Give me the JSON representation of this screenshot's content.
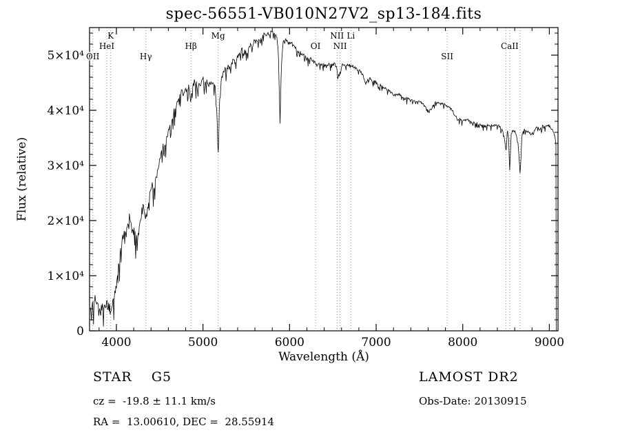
{
  "title": "spec-56551-VB010N27V2_sp13-184.fits",
  "footer": {
    "class_label": "STAR    G5",
    "survey": "LAMOST DR2",
    "cz": "cz =  -19.8 ± 11.1 km/s",
    "obs_date": "Obs-Date: 20130915",
    "coords": "RA =  13.00610, DEC =  28.55914"
  },
  "chart_data": {
    "type": "line",
    "title": "spec-56551-VB010N27V2_sp13-184.fits",
    "xlabel": "Wavelength (Å)",
    "ylabel": "Flux (relative)",
    "xlim": [
      3690,
      9100
    ],
    "ylim": [
      0,
      55000
    ],
    "grid": false,
    "legend": "none",
    "line_color": "#000000",
    "marker_line_color": "#8a8a8a",
    "x_ticks": [
      {
        "v": 4000,
        "label": "4000"
      },
      {
        "v": 5000,
        "label": "5000"
      },
      {
        "v": 6000,
        "label": "6000"
      },
      {
        "v": 7000,
        "label": "7000"
      },
      {
        "v": 8000,
        "label": "8000"
      },
      {
        "v": 9000,
        "label": "9000"
      }
    ],
    "y_ticks": [
      {
        "v": 0,
        "label": "0"
      },
      {
        "v": 10000,
        "label": "1×10⁴"
      },
      {
        "v": 20000,
        "label": "2×10⁴"
      },
      {
        "v": 30000,
        "label": "3×10⁴"
      },
      {
        "v": 40000,
        "label": "4×10⁴"
      },
      {
        "v": 50000,
        "label": "5×10⁴"
      }
    ],
    "x_minor_step": 200,
    "y_minor_step": 2000,
    "spectral_lines": [
      {
        "name": "OII",
        "wavelength": 3727,
        "row": 2
      },
      {
        "name": "HeI",
        "wavelength": 3889,
        "row": 1
      },
      {
        "name": "K",
        "wavelength": 3934,
        "row": 0
      },
      {
        "name": "Hγ",
        "wavelength": 4340,
        "row": 2
      },
      {
        "name": "Hβ",
        "wavelength": 4861,
        "row": 1
      },
      {
        "name": "Mg",
        "wavelength": 5175,
        "row": 0
      },
      {
        "name": "OI",
        "wavelength": 6300,
        "row": 1
      },
      {
        "name": "NII",
        "wavelength": 6548,
        "row": 0
      },
      {
        "name": "NII",
        "wavelength": 6583,
        "row": 1
      },
      {
        "name": "Li",
        "wavelength": 6708,
        "row": 0
      },
      {
        "name": "SII",
        "wavelength": 7820,
        "row": 2
      },
      {
        "name": "",
        "wavelength": 8498,
        "row": 1
      },
      {
        "name": "CaII",
        "wavelength": 8542,
        "row": 1
      },
      {
        "name": "",
        "wavelength": 8662,
        "row": 1
      }
    ],
    "spectrum_anchors": [
      [
        3700,
        4800
      ],
      [
        3712,
        2600
      ],
      [
        3725,
        6200
      ],
      [
        3740,
        4200
      ],
      [
        3755,
        6600
      ],
      [
        3775,
        5000
      ],
      [
        3795,
        4200
      ],
      [
        3815,
        2900
      ],
      [
        3835,
        4700
      ],
      [
        3855,
        3300
      ],
      [
        3875,
        5100
      ],
      [
        3895,
        4900
      ],
      [
        3915,
        4100
      ],
      [
        3934,
        3700
      ],
      [
        3950,
        4500
      ],
      [
        3970,
        5600
      ],
      [
        3990,
        7200
      ],
      [
        4010,
        9800
      ],
      [
        4030,
        12200
      ],
      [
        4050,
        14800
      ],
      [
        4070,
        16600
      ],
      [
        4090,
        17900
      ],
      [
        4110,
        16800
      ],
      [
        4130,
        19300
      ],
      [
        4150,
        21000
      ],
      [
        4170,
        18800
      ],
      [
        4190,
        20400
      ],
      [
        4210,
        18300
      ],
      [
        4230,
        16200
      ],
      [
        4250,
        17600
      ],
      [
        4270,
        19200
      ],
      [
        4290,
        21600
      ],
      [
        4310,
        22400
      ],
      [
        4330,
        21000
      ],
      [
        4350,
        20200
      ],
      [
        4370,
        23600
      ],
      [
        4390,
        25400
      ],
      [
        4410,
        26400
      ],
      [
        4430,
        25600
      ],
      [
        4450,
        27400
      ],
      [
        4470,
        28600
      ],
      [
        4490,
        30000
      ],
      [
        4510,
        31400
      ],
      [
        4530,
        33000
      ],
      [
        4550,
        34400
      ],
      [
        4570,
        33800
      ],
      [
        4590,
        35600
      ],
      [
        4610,
        36600
      ],
      [
        4630,
        37400
      ],
      [
        4650,
        38600
      ],
      [
        4670,
        40000
      ],
      [
        4690,
        41000
      ],
      [
        4710,
        42000
      ],
      [
        4730,
        42400
      ],
      [
        4750,
        43400
      ],
      [
        4770,
        43000
      ],
      [
        4790,
        44000
      ],
      [
        4810,
        43400
      ],
      [
        4830,
        44400
      ],
      [
        4861,
        41600
      ],
      [
        4880,
        44000
      ],
      [
        4900,
        45400
      ],
      [
        4920,
        44600
      ],
      [
        4940,
        45000
      ],
      [
        4960,
        44200
      ],
      [
        4980,
        45400
      ],
      [
        5000,
        46000
      ],
      [
        5020,
        44600
      ],
      [
        5040,
        45400
      ],
      [
        5060,
        44200
      ],
      [
        5080,
        45000
      ],
      [
        5100,
        44600
      ],
      [
        5120,
        45400
      ],
      [
        5140,
        44000
      ],
      [
        5160,
        40000
      ],
      [
        5175,
        31500
      ],
      [
        5190,
        41000
      ],
      [
        5210,
        45600
      ],
      [
        5230,
        46600
      ],
      [
        5250,
        47400
      ],
      [
        5270,
        47000
      ],
      [
        5290,
        48000
      ],
      [
        5310,
        47600
      ],
      [
        5330,
        48400
      ],
      [
        5350,
        49000
      ],
      [
        5370,
        48600
      ],
      [
        5390,
        49400
      ],
      [
        5410,
        50000
      ],
      [
        5430,
        50400
      ],
      [
        5450,
        51000
      ],
      [
        5470,
        50200
      ],
      [
        5490,
        51000
      ],
      [
        5510,
        50600
      ],
      [
        5530,
        51400
      ],
      [
        5550,
        52000
      ],
      [
        5570,
        51200
      ],
      [
        5590,
        52400
      ],
      [
        5610,
        53000
      ],
      [
        5630,
        52200
      ],
      [
        5650,
        53000
      ],
      [
        5670,
        52600
      ],
      [
        5690,
        53400
      ],
      [
        5710,
        54000
      ],
      [
        5730,
        53200
      ],
      [
        5750,
        54000
      ],
      [
        5770,
        53600
      ],
      [
        5790,
        54400
      ],
      [
        5810,
        54000
      ],
      [
        5830,
        53600
      ],
      [
        5850,
        54000
      ],
      [
        5870,
        50500
      ],
      [
        5890,
        37500
      ],
      [
        5905,
        48000
      ],
      [
        5920,
        52400
      ],
      [
        5950,
        52800
      ],
      [
        5980,
        52200
      ],
      [
        6010,
        52400
      ],
      [
        6040,
        51800
      ],
      [
        6070,
        51400
      ],
      [
        6100,
        50800
      ],
      [
        6130,
        50400
      ],
      [
        6160,
        50200
      ],
      [
        6190,
        49800
      ],
      [
        6220,
        49200
      ],
      [
        6250,
        49400
      ],
      [
        6280,
        48800
      ],
      [
        6310,
        48200
      ],
      [
        6340,
        48400
      ],
      [
        6370,
        48200
      ],
      [
        6400,
        48400
      ],
      [
        6430,
        48200
      ],
      [
        6460,
        48400
      ],
      [
        6490,
        48200
      ],
      [
        6520,
        48400
      ],
      [
        6545,
        47800
      ],
      [
        6563,
        45800
      ],
      [
        6585,
        47600
      ],
      [
        6610,
        48200
      ],
      [
        6640,
        48200
      ],
      [
        6670,
        48400
      ],
      [
        6700,
        48200
      ],
      [
        6730,
        48000
      ],
      [
        6760,
        47600
      ],
      [
        6790,
        47200
      ],
      [
        6820,
        47000
      ],
      [
        6850,
        46200
      ],
      [
        6875,
        44800
      ],
      [
        6900,
        45600
      ],
      [
        6930,
        45800
      ],
      [
        6960,
        45400
      ],
      [
        6990,
        45200
      ],
      [
        7020,
        44900
      ],
      [
        7060,
        44500
      ],
      [
        7100,
        44100
      ],
      [
        7140,
        43700
      ],
      [
        7180,
        43100
      ],
      [
        7220,
        42700
      ],
      [
        7260,
        42900
      ],
      [
        7300,
        42500
      ],
      [
        7340,
        42100
      ],
      [
        7380,
        42100
      ],
      [
        7420,
        41800
      ],
      [
        7460,
        41600
      ],
      [
        7500,
        41500
      ],
      [
        7540,
        41200
      ],
      [
        7580,
        40400
      ],
      [
        7610,
        39700
      ],
      [
        7640,
        40400
      ],
      [
        7680,
        41300
      ],
      [
        7720,
        41400
      ],
      [
        7760,
        41100
      ],
      [
        7800,
        41000
      ],
      [
        7840,
        40600
      ],
      [
        7880,
        40000
      ],
      [
        7910,
        38900
      ],
      [
        7950,
        38500
      ],
      [
        8000,
        38100
      ],
      [
        8050,
        38400
      ],
      [
        8100,
        37900
      ],
      [
        8150,
        37600
      ],
      [
        8200,
        37500
      ],
      [
        8250,
        37100
      ],
      [
        8300,
        37400
      ],
      [
        8350,
        37100
      ],
      [
        8400,
        37400
      ],
      [
        8450,
        36600
      ],
      [
        8480,
        35200
      ],
      [
        8498,
        32400
      ],
      [
        8515,
        36400
      ],
      [
        8530,
        34800
      ],
      [
        8542,
        28900
      ],
      [
        8560,
        35900
      ],
      [
        8585,
        36400
      ],
      [
        8610,
        36100
      ],
      [
        8640,
        33800
      ],
      [
        8662,
        28600
      ],
      [
        8685,
        35600
      ],
      [
        8710,
        36400
      ],
      [
        8740,
        36200
      ],
      [
        8770,
        35900
      ],
      [
        8800,
        35600
      ],
      [
        8830,
        36400
      ],
      [
        8860,
        36900
      ],
      [
        8890,
        36600
      ],
      [
        8920,
        37100
      ],
      [
        8950,
        36900
      ],
      [
        8980,
        37300
      ],
      [
        9010,
        37000
      ],
      [
        9040,
        36200
      ],
      [
        9065,
        35300
      ],
      [
        9078,
        33500
      ],
      [
        9080,
        0
      ]
    ],
    "noise_profile": [
      [
        3700,
        1700
      ],
      [
        4200,
        1700
      ],
      [
        4700,
        1200
      ],
      [
        5200,
        900
      ],
      [
        5600,
        700
      ],
      [
        6000,
        600
      ],
      [
        6600,
        500
      ],
      [
        7200,
        450
      ],
      [
        8000,
        420
      ],
      [
        9100,
        420
      ]
    ],
    "noise_seed": 20130915
  }
}
